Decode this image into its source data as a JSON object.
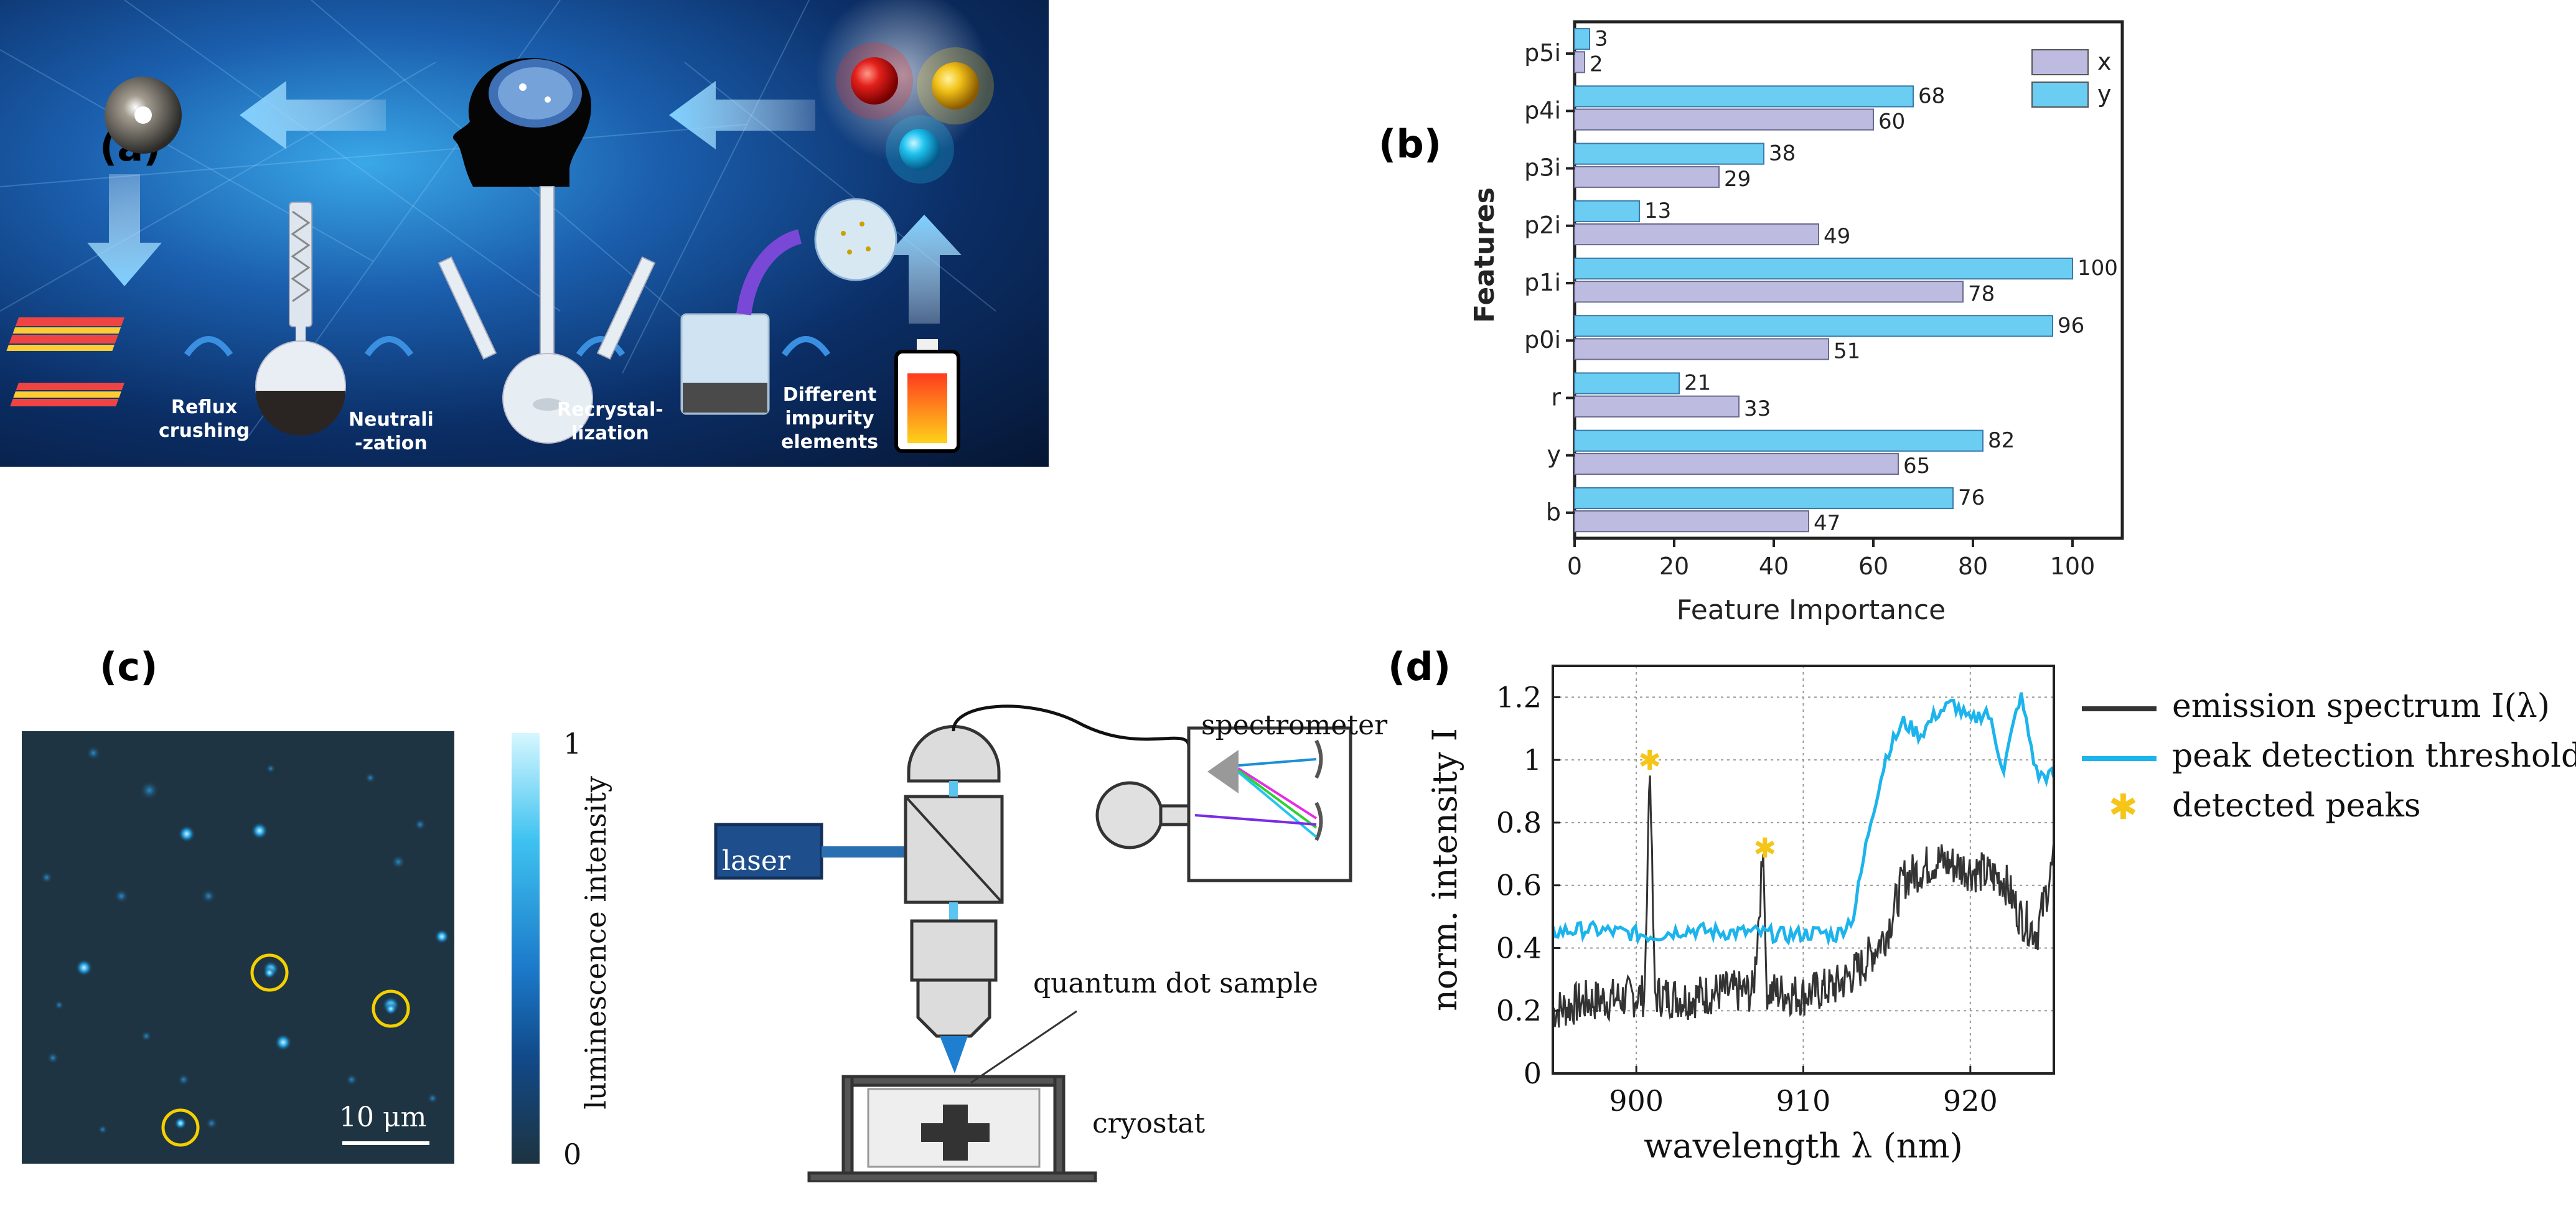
{
  "figure": {
    "labels": {
      "a": "(a)",
      "b": "(b)",
      "c": "(c)",
      "d": "(d)"
    }
  },
  "panel_a": {
    "steps": [
      {
        "line1": "Reflux",
        "line2": "crushing"
      },
      {
        "line1": "Neutrali",
        "line2": "-zation"
      },
      {
        "line1": "Recrystal-",
        "line2": "lization"
      },
      {
        "line1": "Different",
        "line2": "impurity",
        "line3": "elements"
      }
    ],
    "colors": {
      "red": "#e3201b",
      "yellow": "#f2c21a",
      "cyan": "#20c4f0",
      "arrow": "#7fd0ff"
    }
  },
  "chart_data": [
    {
      "id": "b",
      "type": "bar",
      "orientation": "horizontal",
      "categories": [
        "p5i",
        "p4i",
        "p3i",
        "p2i",
        "p1i",
        "p0i",
        "r",
        "y",
        "b"
      ],
      "series": [
        {
          "name": "y",
          "values": [
            3,
            68,
            38,
            13,
            100,
            96,
            21,
            82,
            76
          ],
          "color": "#6bcdf2"
        },
        {
          "name": "x",
          "values": [
            2,
            60,
            29,
            49,
            78,
            51,
            33,
            65,
            47
          ],
          "color": "#bdbce0"
        }
      ],
      "legend_order": [
        "x",
        "y"
      ],
      "xlabel": "Feature Importance",
      "ylabel": "Features",
      "xlim": [
        0,
        110
      ],
      "xticks": [
        0,
        20,
        40,
        60,
        80,
        100
      ],
      "legend_position": "top-right"
    },
    {
      "id": "d",
      "type": "line",
      "xlabel": "wavelength λ (nm)",
      "ylabel": "norm. intensity I",
      "xlim": [
        895,
        925
      ],
      "ylim": [
        0,
        1.3
      ],
      "xticks": [
        900,
        910,
        920
      ],
      "yticks": [
        0,
        0.2,
        0.4,
        0.6,
        0.8,
        1,
        1.2
      ],
      "ytick_labels": [
        "0",
        "0.2",
        "0.4",
        "0.6",
        "0.8",
        "1",
        "1.2"
      ],
      "grid": true,
      "series": [
        {
          "name": "emission spectrum I(λ)",
          "color": "#333333",
          "x": [
            895,
            897,
            899,
            900.5,
            900.8,
            901.1,
            903,
            905,
            907,
            907.6,
            907.8,
            908.1,
            910,
            912,
            913.5,
            915,
            916,
            918,
            920,
            922,
            923,
            924,
            925
          ],
          "y": [
            0.2,
            0.23,
            0.24,
            0.25,
            1.0,
            0.25,
            0.24,
            0.26,
            0.26,
            0.7,
            0.27,
            0.26,
            0.25,
            0.28,
            0.34,
            0.45,
            0.62,
            0.68,
            0.65,
            0.62,
            0.5,
            0.45,
            0.68
          ]
        },
        {
          "name": "peak detection threshold",
          "color": "#1cb4ec",
          "x": [
            895,
            897,
            899,
            901,
            903,
            905,
            907,
            909,
            911,
            912,
            913,
            914,
            915,
            916,
            917,
            918,
            919,
            920,
            921,
            922,
            923,
            924,
            925
          ],
          "y": [
            0.45,
            0.46,
            0.45,
            0.44,
            0.46,
            0.45,
            0.45,
            0.44,
            0.45,
            0.44,
            0.5,
            0.8,
            1.02,
            1.12,
            1.08,
            1.15,
            1.18,
            1.12,
            1.16,
            0.97,
            1.21,
            0.95,
            0.95
          ]
        }
      ],
      "peaks": [
        {
          "x": 900.8,
          "y": 1.0
        },
        {
          "x": 907.7,
          "y": 0.72
        }
      ],
      "legend": [
        {
          "label": "emission spectrum I(λ)",
          "color": "#333333"
        },
        {
          "label": "peak detection threshold",
          "color": "#1cb4ec"
        },
        {
          "label": "detected peaks",
          "color": "#f5c518"
        }
      ]
    }
  ],
  "panel_c": {
    "colorbar_label": "luminescence intensity",
    "colorbar_max": "1",
    "colorbar_min": "0",
    "scalebar": "10 μm",
    "setup": {
      "laser": "laser",
      "spectrometer": "spectrometer",
      "sample": "quantum dot sample",
      "cryostat": "cryostat"
    }
  }
}
